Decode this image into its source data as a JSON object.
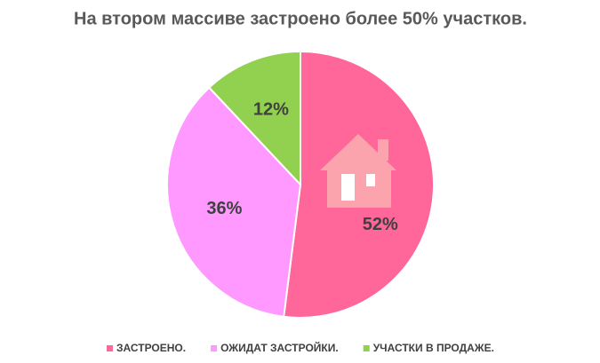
{
  "chart_data": {
    "type": "pie",
    "title": "На втором массиве застроено более 50% участков.",
    "categories": [
      "ЗАСТРОЕНО.",
      "ОЖИДАТ ЗАСТРОЙКИ.",
      "УЧАСТКИ В ПРОДАЖЕ."
    ],
    "values": [
      52,
      36,
      12
    ],
    "value_labels": [
      "52%",
      "36%",
      "12%"
    ],
    "colors": [
      "#ff6699",
      "#ff99ff",
      "#92d050"
    ],
    "legend": "bottom"
  }
}
